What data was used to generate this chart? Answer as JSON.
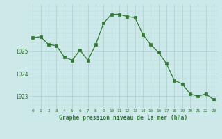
{
  "x": [
    0,
    1,
    2,
    3,
    4,
    5,
    6,
    7,
    8,
    9,
    10,
    11,
    12,
    13,
    14,
    15,
    16,
    17,
    18,
    19,
    20,
    21,
    22,
    23
  ],
  "y": [
    1025.6,
    1025.65,
    1025.3,
    1025.25,
    1024.75,
    1024.6,
    1025.05,
    1024.6,
    1025.3,
    1026.25,
    1026.65,
    1026.65,
    1026.55,
    1026.5,
    1025.75,
    1025.3,
    1024.95,
    1024.45,
    1023.7,
    1023.55,
    1023.1,
    1023.0,
    1023.1,
    1022.85
  ],
  "line_color": "#2d7a2d",
  "marker_color": "#2d7a2d",
  "bg_color": "#cce8e8",
  "grid_color_major": "#aacece",
  "grid_color_minor": "#bbdddd",
  "tick_label_color": "#2d7a2d",
  "xlabel": "Graphe pression niveau de la mer (hPa)",
  "ylim": [
    1022.45,
    1027.1
  ],
  "yticks": [
    1023,
    1024,
    1025
  ],
  "xlim": [
    -0.5,
    23.5
  ],
  "xtick_labels": [
    "0",
    "1",
    "2",
    "3",
    "4",
    "5",
    "6",
    "7",
    "8",
    "9",
    "10",
    "11",
    "12",
    "13",
    "14",
    "15",
    "16",
    "17",
    "18",
    "19",
    "20",
    "21",
    "22",
    "23"
  ]
}
